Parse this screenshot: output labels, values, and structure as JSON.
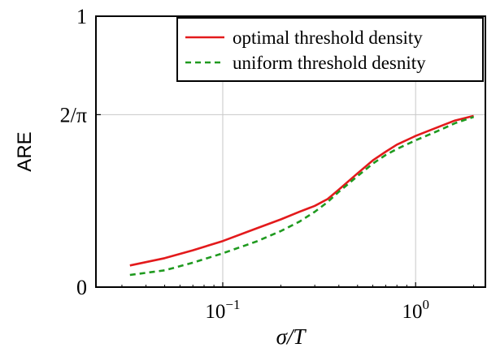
{
  "chart_data": {
    "type": "line",
    "x_scale": "log",
    "xlabel": "σ/T",
    "ylabel": "ARE",
    "xlim": [
      0.022,
      2.3
    ],
    "ylim": [
      0,
      1
    ],
    "grid": true,
    "legend_position": "top-right",
    "x_ticks": [
      {
        "value": 0.1,
        "base": "10",
        "exp": "−1"
      },
      {
        "value": 1,
        "base": "10",
        "exp": "0"
      }
    ],
    "y_ticks": [
      {
        "value": 0,
        "label": "0"
      },
      {
        "value": 0.6366,
        "label": "2/π"
      },
      {
        "value": 1,
        "label": "1"
      }
    ],
    "series": [
      {
        "name": "optimal threshold density",
        "color": "#e31a1c",
        "dash": "solid",
        "x": [
          0.033,
          0.05,
          0.07,
          0.1,
          0.15,
          0.2,
          0.25,
          0.3,
          0.35,
          0.4,
          0.5,
          0.6,
          0.7,
          0.8,
          1.0,
          1.3,
          1.6,
          2.0
        ],
        "y": [
          0.08,
          0.107,
          0.136,
          0.17,
          0.217,
          0.25,
          0.278,
          0.3,
          0.325,
          0.36,
          0.42,
          0.468,
          0.5,
          0.526,
          0.558,
          0.59,
          0.615,
          0.632
        ]
      },
      {
        "name": "uniform threshold desnity",
        "color": "#1f9a1f",
        "dash": "dashed",
        "x": [
          0.033,
          0.05,
          0.07,
          0.1,
          0.15,
          0.2,
          0.25,
          0.3,
          0.35,
          0.4,
          0.5,
          0.6,
          0.7,
          0.8,
          1.0,
          1.3,
          1.6,
          2.0
        ],
        "y": [
          0.045,
          0.062,
          0.09,
          0.125,
          0.169,
          0.207,
          0.242,
          0.278,
          0.314,
          0.352,
          0.41,
          0.456,
          0.488,
          0.51,
          0.542,
          0.576,
          0.605,
          0.628
        ]
      }
    ]
  }
}
